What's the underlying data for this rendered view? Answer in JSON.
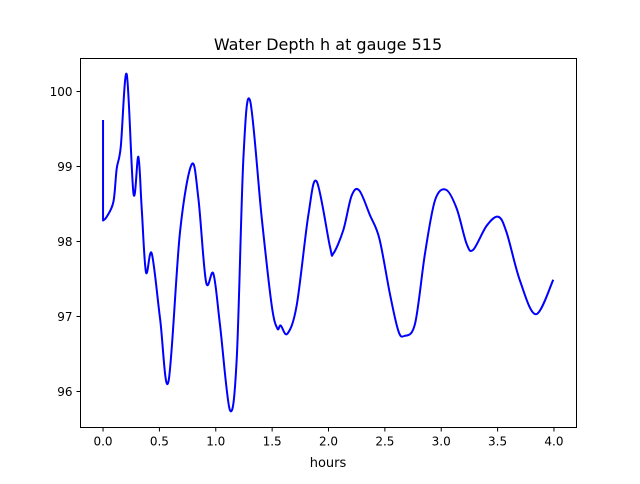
{
  "chart_data": {
    "type": "line",
    "title": "Water Depth h at gauge 515",
    "xlabel": "hours",
    "ylabel": "",
    "xlim": [
      -0.2,
      4.2
    ],
    "ylim": [
      95.52,
      100.44
    ],
    "xticks": [
      0.0,
      0.5,
      1.0,
      1.5,
      2.0,
      2.5,
      3.0,
      3.5,
      4.0
    ],
    "xtick_labels": [
      "0.0",
      "0.5",
      "1.0",
      "1.5",
      "2.0",
      "2.5",
      "3.0",
      "3.5",
      "4.0"
    ],
    "yticks": [
      96,
      97,
      98,
      99,
      100
    ],
    "ytick_labels": [
      "96",
      "97",
      "98",
      "99",
      "100"
    ],
    "grid": false,
    "series": [
      {
        "name": "h",
        "color": "#0000ff",
        "x": [
          0,
          0,
          0.033,
          0.092,
          0.121,
          0.157,
          0.21,
          0.27,
          0.313,
          0.343,
          0.381,
          0.432,
          0.506,
          0.58,
          0.683,
          0.787,
          0.846,
          0.914,
          0.979,
          1.038,
          1.126,
          1.186,
          1.245,
          1.304,
          1.408,
          1.496,
          1.546,
          1.576,
          1.635,
          1.718,
          1.821,
          1.895,
          2.013,
          2.043,
          2.131,
          2.205,
          2.273,
          2.368,
          2.451,
          2.545,
          2.619,
          2.672,
          2.767,
          2.856,
          2.945,
          3.042,
          3.137,
          3.225,
          3.284,
          3.403,
          3.506,
          3.58,
          3.698,
          3.84,
          3.994
        ],
        "y": [
          99.62,
          98.28,
          98.33,
          98.53,
          98.97,
          99.26,
          100.23,
          98.64,
          99.13,
          98.44,
          97.59,
          97.84,
          96.97,
          96.13,
          98.13,
          99.03,
          98.57,
          97.46,
          97.57,
          96.88,
          95.75,
          96.44,
          99.11,
          99.88,
          98.31,
          97.15,
          96.84,
          96.88,
          96.77,
          97.15,
          98.35,
          98.8,
          97.93,
          97.84,
          98.15,
          98.61,
          98.68,
          98.35,
          98.04,
          97.3,
          96.81,
          96.74,
          96.9,
          97.84,
          98.55,
          98.69,
          98.44,
          97.97,
          97.89,
          98.21,
          98.33,
          98.12,
          97.48,
          97.03,
          97.49
        ]
      }
    ]
  }
}
